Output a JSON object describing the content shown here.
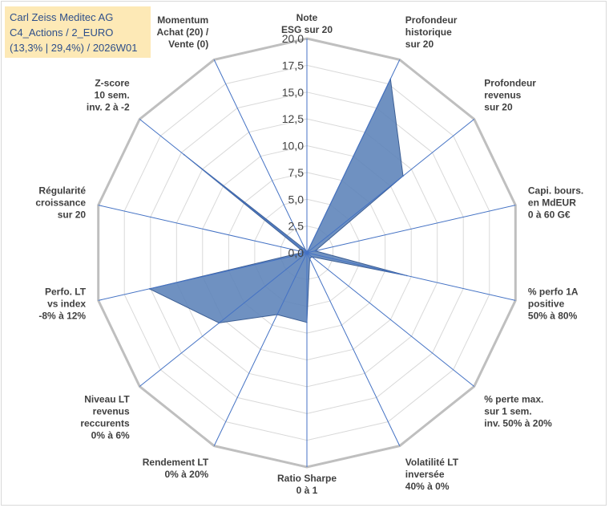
{
  "header": {
    "line1": "Carl Zeiss Meditec AG",
    "line2": "C4_Actions / 2_EURO",
    "line3": "(13,3% | 29,4%) / 2026W01"
  },
  "colors": {
    "fill": "#5b82b8",
    "stroke": "#3d5f94",
    "spoke": "#4472c4",
    "grid": "#d9d9d9",
    "header_bg": "#fde9b6",
    "header_text": "#2e4f8a"
  },
  "chart_data": {
    "type": "radar",
    "rmax": 20,
    "ticks": [
      "0,0",
      "2,5",
      "5,0",
      "7,5",
      "10,0",
      "12,5",
      "15,0",
      "17,5",
      "20,0"
    ],
    "axes": [
      [
        "Note",
        "ESG sur 20"
      ],
      [
        "Profondeur",
        "historique",
        "sur 20"
      ],
      [
        "Profondeur",
        "revenus",
        "sur 20"
      ],
      [
        "Capi. bours.",
        "en MdEUR",
        "0 à 60 G€"
      ],
      [
        "% perfo 1A",
        "positive",
        "50% à 80%"
      ],
      [
        "% perte max.",
        "sur 1 sem.",
        "inv. 50% à 20%"
      ],
      [
        "Volatilité LT",
        "inversée",
        "40% à 0%"
      ],
      [
        "Ratio Sharpe",
        "0 à 1"
      ],
      [
        "Rendement LT",
        "0% à 20%"
      ],
      [
        "Niveau LT",
        "revenus",
        "reccurents",
        "0% à 6%"
      ],
      [
        "Perfo. LT",
        "vs index",
        "-8% à 12%"
      ],
      [
        "Régularité",
        "croissance",
        "sur 20"
      ],
      [
        "Z-score",
        "10 sem.",
        "inv. 2 à -2"
      ],
      [
        "Momentum",
        "Achat (20) /",
        "Vente (0)"
      ]
    ],
    "values": [
      0,
      18.0,
      11.5,
      0.8,
      9.6,
      0.6,
      0.6,
      6.5,
      6.4,
      10.5,
      15.1,
      0.3,
      14.7,
      0.3
    ]
  }
}
